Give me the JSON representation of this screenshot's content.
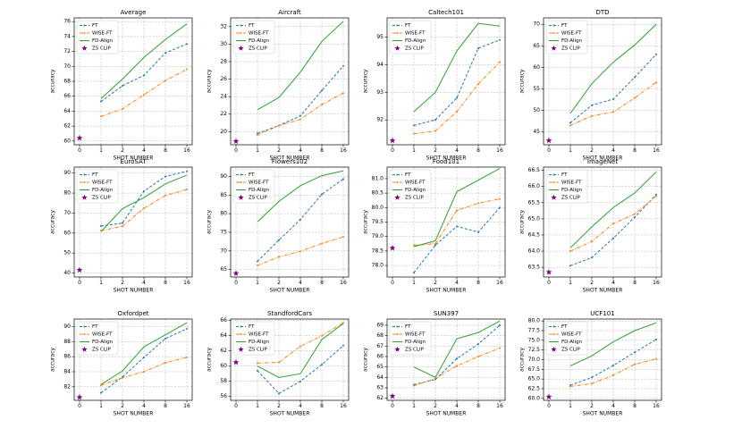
{
  "chart_data": [
    {
      "type": "line",
      "title": "Average",
      "xlabel": "SHOT NUMBER",
      "ylabel": "accuracy",
      "categories": [
        "0",
        "1",
        "2",
        "4",
        "8",
        "16"
      ],
      "ylim": [
        59.5,
        76.5
      ],
      "yticks": [
        60,
        62,
        64,
        66,
        68,
        70,
        72,
        74,
        76
      ],
      "grid": true,
      "legend": "upper left",
      "series": [
        {
          "name": "FT",
          "color": "#1f77b4",
          "linestyle": "dashed",
          "marker": "dot",
          "values": [
            null,
            65.3,
            67.4,
            68.8,
            71.8,
            73.0
          ]
        },
        {
          "name": "WISE-FT",
          "color": "#ff7f0e",
          "linestyle": "dashdot",
          "marker": "dot",
          "values": [
            null,
            63.3,
            64.3,
            66.2,
            68.1,
            69.6
          ]
        },
        {
          "name": "FD-Align",
          "color": "#2ca02c",
          "linestyle": "solid",
          "values": [
            null,
            65.7,
            68.3,
            71.2,
            73.6,
            75.7
          ]
        },
        {
          "name": "ZS CLIP",
          "color": "#800080",
          "marker": "star",
          "values": [
            60.4,
            null,
            null,
            null,
            null,
            null
          ]
        }
      ]
    },
    {
      "type": "line",
      "title": "Aircraft",
      "xlabel": "SHOT NUMBER",
      "ylabel": "accuracy",
      "categories": [
        "0",
        "1",
        "2",
        "4",
        "8",
        "16"
      ],
      "ylim": [
        18.5,
        33
      ],
      "yticks": [
        20,
        22,
        24,
        26,
        28,
        30,
        32
      ],
      "grid": true,
      "legend": "upper left",
      "series": [
        {
          "name": "FT",
          "color": "#1f77b4",
          "linestyle": "dashed",
          "marker": "dot",
          "values": [
            null,
            19.8,
            20.7,
            21.8,
            24.7,
            27.5
          ]
        },
        {
          "name": "WISE-FT",
          "color": "#ff7f0e",
          "linestyle": "dashdot",
          "marker": "dot",
          "values": [
            null,
            19.6,
            20.7,
            21.4,
            23.1,
            24.4
          ]
        },
        {
          "name": "FD-Align",
          "color": "#2ca02c",
          "linestyle": "solid",
          "values": [
            null,
            22.5,
            23.9,
            26.8,
            30.3,
            32.6
          ]
        },
        {
          "name": "ZS CLIP",
          "color": "#800080",
          "marker": "star",
          "values": [
            18.9,
            null,
            null,
            null,
            null,
            null
          ]
        }
      ]
    },
    {
      "type": "line",
      "title": "Caltech101",
      "xlabel": "SHOT NUMBER",
      "ylabel": "accuracy",
      "categories": [
        "0",
        "1",
        "2",
        "4",
        "8",
        "16"
      ],
      "ylim": [
        91.1,
        95.7
      ],
      "yticks": [
        92,
        93,
        94,
        95
      ],
      "grid": true,
      "legend": "upper left",
      "series": [
        {
          "name": "FT",
          "color": "#1f77b4",
          "linestyle": "dashed",
          "marker": "dot",
          "values": [
            null,
            91.8,
            92.0,
            92.8,
            94.6,
            94.9
          ]
        },
        {
          "name": "WISE-FT",
          "color": "#ff7f0e",
          "linestyle": "dashdot",
          "marker": "dot",
          "values": [
            null,
            91.5,
            91.6,
            92.3,
            93.3,
            94.1
          ]
        },
        {
          "name": "FD-Align",
          "color": "#2ca02c",
          "linestyle": "solid",
          "values": [
            null,
            92.3,
            93.0,
            94.5,
            95.5,
            95.4
          ]
        },
        {
          "name": "ZS CLIP",
          "color": "#800080",
          "marker": "star",
          "values": [
            91.25,
            null,
            null,
            null,
            null,
            null
          ]
        }
      ]
    },
    {
      "type": "line",
      "title": "DTD",
      "xlabel": "SHOT NUMBER",
      "ylabel": "accuracy",
      "categories": [
        "0",
        "1",
        "2",
        "4",
        "8",
        "16"
      ],
      "ylim": [
        42,
        71.5
      ],
      "yticks": [
        45,
        50,
        55,
        60,
        65,
        70
      ],
      "grid": true,
      "legend": "upper left",
      "series": [
        {
          "name": "FT",
          "color": "#1f77b4",
          "linestyle": "dashed",
          "marker": "dot",
          "values": [
            null,
            47.1,
            51.2,
            52.6,
            57.7,
            63.0
          ]
        },
        {
          "name": "WISE-FT",
          "color": "#ff7f0e",
          "linestyle": "dashdot",
          "marker": "dot",
          "values": [
            null,
            46.5,
            48.7,
            49.6,
            52.9,
            56.5
          ]
        },
        {
          "name": "FD-Align",
          "color": "#2ca02c",
          "linestyle": "solid",
          "values": [
            null,
            49.3,
            56.2,
            61.2,
            65.2,
            70.0
          ]
        },
        {
          "name": "ZS CLIP",
          "color": "#800080",
          "marker": "star",
          "values": [
            43.0,
            null,
            null,
            null,
            null,
            null
          ]
        }
      ]
    },
    {
      "type": "line",
      "title": "EuroSAT",
      "xlabel": "SHOT NUMBER",
      "ylabel": "accuracy",
      "categories": [
        "0",
        "1",
        "2",
        "4",
        "8",
        "16"
      ],
      "ylim": [
        38,
        93
      ],
      "yticks": [
        40,
        50,
        60,
        70,
        80,
        90
      ],
      "grid": true,
      "legend": "upper left",
      "series": [
        {
          "name": "FT",
          "color": "#1f77b4",
          "linestyle": "dashed",
          "marker": "dot",
          "values": [
            null,
            63.5,
            65.0,
            81.0,
            88.3,
            90.9
          ]
        },
        {
          "name": "WISE-FT",
          "color": "#ff7f0e",
          "linestyle": "dashdot",
          "marker": "dot",
          "values": [
            null,
            61.2,
            63.4,
            72.4,
            78.8,
            81.8
          ]
        },
        {
          "name": "FD-Align",
          "color": "#2ca02c",
          "linestyle": "solid",
          "values": [
            null,
            60.7,
            72.2,
            77.7,
            84.6,
            89.0
          ]
        },
        {
          "name": "ZS CLIP",
          "color": "#800080",
          "marker": "star",
          "values": [
            41.5,
            null,
            null,
            null,
            null,
            null
          ]
        }
      ]
    },
    {
      "type": "line",
      "title": "Flowers102",
      "xlabel": "SHOT NUMBER",
      "ylabel": "accuracy",
      "categories": [
        "0",
        "1",
        "2",
        "4",
        "8",
        "16"
      ],
      "ylim": [
        63,
        92.5
      ],
      "yticks": [
        65,
        70,
        75,
        80,
        85,
        90
      ],
      "grid": true,
      "legend": "upper left",
      "series": [
        {
          "name": "FT",
          "color": "#1f77b4",
          "linestyle": "dashed",
          "marker": "dot",
          "values": [
            null,
            67.2,
            72.9,
            78.4,
            85.2,
            89.3
          ]
        },
        {
          "name": "WISE-FT",
          "color": "#ff7f0e",
          "linestyle": "dashdot",
          "marker": "dot",
          "values": [
            null,
            66.1,
            68.4,
            69.9,
            72.0,
            73.8
          ]
        },
        {
          "name": "FD-Align",
          "color": "#2ca02c",
          "linestyle": "solid",
          "values": [
            null,
            77.8,
            83.3,
            87.5,
            90.2,
            91.5
          ]
        },
        {
          "name": "ZS CLIP",
          "color": "#800080",
          "marker": "star",
          "values": [
            64.0,
            null,
            null,
            null,
            null,
            null
          ]
        }
      ]
    },
    {
      "type": "line",
      "title": "Food101",
      "xlabel": "SHOT NUMBER",
      "ylabel": "accuracy",
      "categories": [
        "0",
        "1",
        "2",
        "4",
        "8",
        "16"
      ],
      "ylim": [
        77.6,
        81.4
      ],
      "yticks": [
        {
          "value": 78,
          "label": "78.0"
        },
        78.5,
        {
          "value": 79,
          "label": "79.0"
        },
        79.5,
        {
          "value": 80,
          "label": "80.0"
        },
        80.5,
        {
          "value": 81,
          "label": "81.0"
        }
      ],
      "grid": true,
      "legend": "upper left",
      "series": [
        {
          "name": "FT",
          "color": "#1f77b4",
          "linestyle": "dashed",
          "marker": "dot",
          "values": [
            null,
            77.75,
            78.7,
            79.35,
            79.15,
            80.0
          ]
        },
        {
          "name": "WISE-FT",
          "color": "#ff7f0e",
          "linestyle": "dashdot",
          "marker": "dot",
          "values": [
            null,
            78.7,
            78.75,
            79.9,
            80.15,
            80.3
          ]
        },
        {
          "name": "FD-Align",
          "color": "#2ca02c",
          "linestyle": "solid",
          "values": [
            null,
            78.65,
            78.85,
            80.55,
            80.95,
            81.35
          ]
        },
        {
          "name": "ZS CLIP",
          "color": "#800080",
          "marker": "star",
          "values": [
            78.6,
            null,
            null,
            null,
            null,
            null
          ]
        }
      ]
    },
    {
      "type": "line",
      "title": "ImageNet",
      "xlabel": "SHOT NUMBER",
      "ylabel": "accuracy",
      "categories": [
        "0",
        "1",
        "2",
        "4",
        "8",
        "16"
      ],
      "ylim": [
        63.2,
        66.6
      ],
      "yticks": [
        63.5,
        {
          "value": 64,
          "label": "64.0"
        },
        64.5,
        {
          "value": 65,
          "label": "65.0"
        },
        65.5,
        {
          "value": 66,
          "label": "66.0"
        },
        66.5
      ],
      "grid": true,
      "legend": "upper left",
      "series": [
        {
          "name": "FT",
          "color": "#1f77b4",
          "linestyle": "dashed",
          "marker": "dot",
          "values": [
            null,
            63.55,
            63.8,
            64.4,
            65.05,
            65.75
          ]
        },
        {
          "name": "WISE-FT",
          "color": "#ff7f0e",
          "linestyle": "dashdot",
          "marker": "dot",
          "values": [
            null,
            64.0,
            64.3,
            64.85,
            65.15,
            65.7
          ]
        },
        {
          "name": "FD-Align",
          "color": "#2ca02c",
          "linestyle": "solid",
          "values": [
            null,
            64.1,
            64.75,
            65.35,
            65.8,
            66.45
          ]
        },
        {
          "name": "ZS CLIP",
          "color": "#800080",
          "marker": "star",
          "values": [
            63.35,
            null,
            null,
            null,
            null,
            null
          ]
        }
      ]
    },
    {
      "type": "line",
      "title": "Oxfordpet",
      "xlabel": "SHOT NUMBER",
      "ylabel": "accuracy",
      "categories": [
        "0",
        "1",
        "2",
        "4",
        "8",
        "16"
      ],
      "ylim": [
        80.2,
        91
      ],
      "yticks": [
        82,
        84,
        86,
        88,
        90
      ],
      "grid": true,
      "legend": "upper left",
      "series": [
        {
          "name": "FT",
          "color": "#1f77b4",
          "linestyle": "dashed",
          "marker": "dot",
          "values": [
            null,
            81.2,
            83.3,
            85.9,
            88.4,
            89.7
          ]
        },
        {
          "name": "WISE-FT",
          "color": "#ff7f0e",
          "linestyle": "dashdot",
          "marker": "dot",
          "values": [
            null,
            82.2,
            83.2,
            84.0,
            85.2,
            85.9
          ]
        },
        {
          "name": "FD-Align",
          "color": "#2ca02c",
          "linestyle": "solid",
          "values": [
            null,
            82.3,
            84.1,
            87.3,
            88.9,
            90.5
          ]
        },
        {
          "name": "ZS CLIP",
          "color": "#800080",
          "marker": "star",
          "values": [
            80.6,
            null,
            null,
            null,
            null,
            null
          ]
        }
      ]
    },
    {
      "type": "line",
      "title": "StandfordCars",
      "xlabel": "SHOT NUMBER",
      "ylabel": "accuracy",
      "categories": [
        "0",
        "1",
        "2",
        "4",
        "8",
        "16"
      ],
      "ylim": [
        55.5,
        66.2
      ],
      "yticks": [
        56,
        58,
        60,
        62,
        64,
        66
      ],
      "grid": true,
      "legend": "upper left",
      "series": [
        {
          "name": "FT",
          "color": "#1f77b4",
          "linestyle": "dashed",
          "marker": "dot",
          "values": [
            null,
            59.4,
            56.4,
            58.0,
            60.2,
            62.7
          ]
        },
        {
          "name": "WISE-FT",
          "color": "#ff7f0e",
          "linestyle": "dashdot",
          "marker": "dot",
          "values": [
            null,
            60.4,
            60.5,
            62.6,
            64.0,
            65.7
          ]
        },
        {
          "name": "FD-Align",
          "color": "#2ca02c",
          "linestyle": "solid",
          "values": [
            null,
            60.0,
            58.5,
            59.0,
            63.5,
            65.6
          ]
        },
        {
          "name": "ZS CLIP",
          "color": "#800080",
          "marker": "star",
          "values": [
            60.5,
            null,
            null,
            null,
            null,
            null
          ]
        }
      ]
    },
    {
      "type": "line",
      "title": "SUN397",
      "xlabel": "SHOT NUMBER",
      "ylabel": "accuracy",
      "categories": [
        "0",
        "1",
        "2",
        "4",
        "8",
        "16"
      ],
      "ylim": [
        61.8,
        69.6
      ],
      "yticks": [
        62,
        63,
        64,
        65,
        66,
        67,
        68,
        69
      ],
      "grid": true,
      "legend": "upper left",
      "series": [
        {
          "name": "FT",
          "color": "#1f77b4",
          "linestyle": "dashed",
          "marker": "dot",
          "values": [
            null,
            63.3,
            63.8,
            65.8,
            67.2,
            69.0
          ]
        },
        {
          "name": "WISE-FT",
          "color": "#ff7f0e",
          "linestyle": "dashdot",
          "marker": "dot",
          "values": [
            null,
            63.2,
            63.9,
            65.1,
            66.0,
            66.8
          ]
        },
        {
          "name": "FD-Align",
          "color": "#2ca02c",
          "linestyle": "solid",
          "values": [
            null,
            65.0,
            64.0,
            67.7,
            68.3,
            69.4
          ]
        },
        {
          "name": "ZS CLIP",
          "color": "#800080",
          "marker": "star",
          "values": [
            62.2,
            null,
            null,
            null,
            null,
            null
          ]
        }
      ]
    },
    {
      "type": "line",
      "title": "UCF101",
      "xlabel": "SHOT NUMBER",
      "ylabel": "accuracy",
      "categories": [
        "0",
        "1",
        "2",
        "4",
        "8",
        "16"
      ],
      "ylim": [
        59.5,
        80.5
      ],
      "yticks": [
        {
          "value": 60,
          "label": "60.0"
        },
        62.5,
        {
          "value": 65,
          "label": "65.0"
        },
        67.5,
        {
          "value": 70,
          "label": "70.0"
        },
        72.5,
        {
          "value": 75,
          "label": "75.0"
        },
        77.5,
        {
          "value": 80,
          "label": "80.0"
        }
      ],
      "grid": true,
      "legend": "upper left",
      "series": [
        {
          "name": "FT",
          "color": "#1f77b4",
          "linestyle": "dashed",
          "marker": "dot",
          "values": [
            null,
            63.4,
            65.4,
            68.5,
            71.9,
            75.2
          ]
        },
        {
          "name": "WISE-FT",
          "color": "#ff7f0e",
          "linestyle": "dashdot",
          "marker": "dot",
          "values": [
            null,
            63.1,
            63.8,
            66.0,
            68.8,
            70.2
          ]
        },
        {
          "name": "FD-Align",
          "color": "#2ca02c",
          "linestyle": "solid",
          "values": [
            null,
            68.4,
            71.0,
            74.6,
            77.5,
            79.5
          ]
        },
        {
          "name": "ZS CLIP",
          "color": "#800080",
          "marker": "star",
          "values": [
            60.4,
            null,
            null,
            null,
            null,
            null
          ]
        }
      ]
    }
  ]
}
